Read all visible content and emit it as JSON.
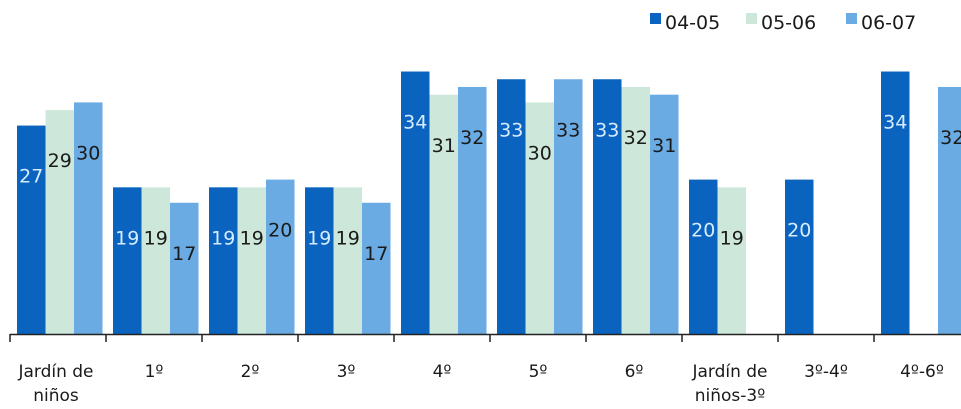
{
  "chart_data": {
    "type": "bar",
    "categories": [
      "Jardín de niños",
      "1º",
      "2º",
      "3º",
      "4º",
      "5º",
      "6º",
      "Jardín de niños-3º",
      "3º-4º",
      "4º-6º"
    ],
    "category_lines": [
      [
        "Jardín de",
        "niños"
      ],
      [
        "1º"
      ],
      [
        "2º"
      ],
      [
        "3º"
      ],
      [
        "4º"
      ],
      [
        "5º"
      ],
      [
        "6º"
      ],
      [
        "Jardín de",
        "niños-3º"
      ],
      [
        "3º-4º"
      ],
      [
        "4º-6º"
      ]
    ],
    "series": [
      {
        "name": "04-05",
        "color": "#0a64bf",
        "values": [
          27,
          19,
          19,
          19,
          34,
          33,
          33,
          20,
          20,
          34
        ]
      },
      {
        "name": "05-06",
        "color": "#cde8da",
        "values": [
          29,
          19,
          19,
          19,
          31,
          30,
          32,
          19,
          null,
          null
        ]
      },
      {
        "name": "06-07",
        "color": "#6aabe3",
        "values": [
          30,
          17,
          20,
          17,
          32,
          33,
          31,
          null,
          null,
          32
        ]
      }
    ],
    "data_labels": true,
    "legend_position": "top-right",
    "ylim": [
      0,
      35
    ],
    "grid": false
  }
}
